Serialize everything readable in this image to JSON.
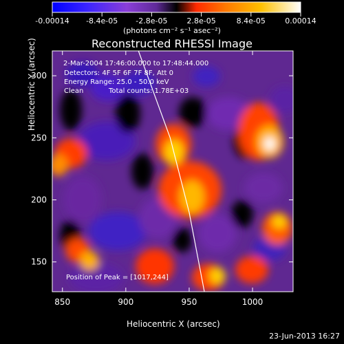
{
  "chart_data": {
    "type": "heatmap",
    "title": "Reconstructed RHESSI Image",
    "xlabel": "Heliocentric X (arcsec)",
    "ylabel": "Heliocentric Y (arcsec)",
    "xlim": [
      842,
      1032
    ],
    "ylim": [
      126,
      320
    ],
    "x_ticks": [
      850,
      900,
      950,
      1000
    ],
    "y_ticks": [
      150,
      200,
      250,
      300
    ],
    "colorbar": {
      "ticks": [
        "-0.00014",
        "-8.4e-05",
        "-2.8e-05",
        "2.8e-05",
        "8.4e-05",
        "0.00014"
      ],
      "label": "(photons cm⁻² s⁻¹ asec⁻²)",
      "range": [
        -0.00014,
        0.00014
      ]
    },
    "annotations": {
      "time_range": "2-Mar-2004 17:46:00.000 to 17:48:44.000",
      "detectors": "Detectors: 4F 5F 6F 7F 8F, Att 0",
      "energy": "Energy Range: 25.0 - 50.0 keV",
      "method": "Clean",
      "total_counts": "Total counts: 1.78E+03",
      "peak": "Position of Peak = [1017,244]"
    },
    "peak_position": [
      1017,
      244
    ],
    "limb_arc": [
      [
        910,
        320
      ],
      [
        935,
        250
      ],
      [
        950,
        190
      ],
      [
        962,
        126
      ]
    ]
  },
  "footer": {
    "date": "23-Jun-2013 16:27"
  },
  "colors": {
    "background": "#000000",
    "text": "#ffffff",
    "colormap": [
      "#0000ff",
      "#3c2cff",
      "#8040d0",
      "#6a30a0",
      "#000000",
      "#ff3000",
      "#ff8000",
      "#ffc000",
      "#ffffff"
    ]
  }
}
